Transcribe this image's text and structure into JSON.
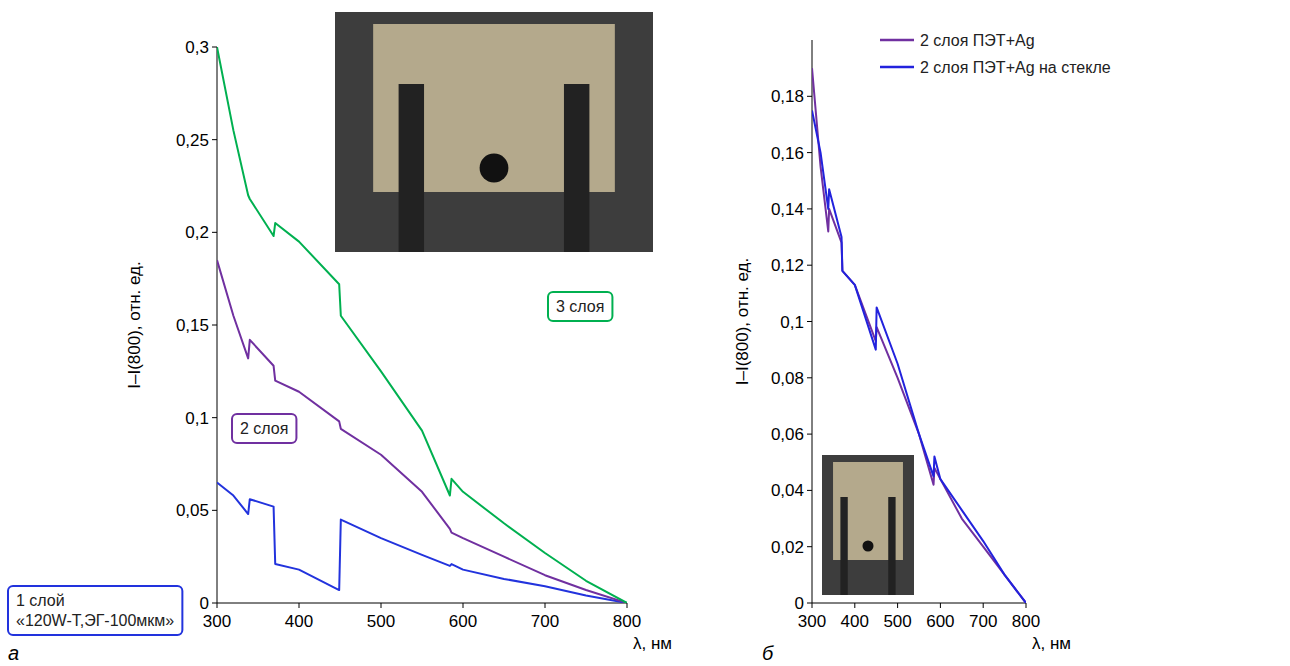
{
  "chart_data": [
    {
      "type": "line",
      "title": "а",
      "x_label": "λ, нм",
      "y_label": "I–I(800), отн. ед.",
      "x": [
        300,
        320,
        338,
        340,
        369,
        371,
        400,
        449,
        451,
        500,
        550,
        584,
        586,
        600,
        650,
        700,
        750,
        800
      ],
      "series": [
        {
          "name": "1 слой «120W-Т,ЭГ-100мкм»",
          "color": "#2233dd",
          "values": [
            0.065,
            0.058,
            0.048,
            0.056,
            0.052,
            0.021,
            0.018,
            0.007,
            0.045,
            0.035,
            0.026,
            0.02,
            0.021,
            0.018,
            0.013,
            0.009,
            0.004,
            0
          ]
        },
        {
          "name": "2 слоя",
          "color": "#7030a0",
          "values": [
            0.185,
            0.155,
            0.132,
            0.142,
            0.128,
            0.12,
            0.114,
            0.098,
            0.094,
            0.08,
            0.06,
            0.04,
            0.038,
            0.035,
            0.025,
            0.015,
            0.007,
            0
          ]
        },
        {
          "name": "3 слоя",
          "color": "#00b050",
          "values": [
            0.3,
            0.255,
            0.22,
            0.218,
            0.198,
            0.205,
            0.195,
            0.172,
            0.155,
            0.125,
            0.093,
            0.058,
            0.067,
            0.06,
            0.043,
            0.027,
            0.012,
            0
          ]
        }
      ],
      "xlim": [
        300,
        800
      ],
      "ylim": [
        0,
        0.3
      ],
      "xticks": [
        300,
        400,
        500,
        600,
        700,
        800
      ],
      "yticks": [
        0,
        {
          "value": 0.05,
          "label": "0,05"
        },
        {
          "value": 0.1,
          "label": "0,1"
        },
        {
          "value": 0.15,
          "label": "0,15"
        },
        {
          "value": 0.2,
          "label": "0,2"
        },
        {
          "value": 0.25,
          "label": "0,25"
        },
        {
          "value": 0.3,
          "label": "0,3"
        }
      ],
      "grid": false
    },
    {
      "type": "line",
      "title": "б",
      "x_label": "λ, нм",
      "y_label": "I–I(800), отн. ед.",
      "x": [
        300,
        320,
        338,
        340,
        369,
        371,
        400,
        449,
        451,
        500,
        550,
        584,
        586,
        600,
        650,
        700,
        750,
        800
      ],
      "series": [
        {
          "name": "2 слоя ПЭТ+Ag",
          "color": "#7030a0",
          "values": [
            0.19,
            0.155,
            0.132,
            0.14,
            0.128,
            0.118,
            0.113,
            0.093,
            0.098,
            0.08,
            0.06,
            0.042,
            0.048,
            0.044,
            0.03,
            0.02,
            0.01,
            0
          ]
        },
        {
          "name": "2 слоя ПЭТ+Ag на стекле",
          "color": "#2222dd",
          "values": [
            0.175,
            0.16,
            0.14,
            0.147,
            0.13,
            0.118,
            0.113,
            0.09,
            0.105,
            0.085,
            0.06,
            0.045,
            0.052,
            0.044,
            0.033,
            0.022,
            0.01,
            0
          ]
        }
      ],
      "xlim": [
        300,
        800
      ],
      "ylim": [
        0,
        0.2
      ],
      "xticks": [
        300,
        400,
        500,
        600,
        700,
        800
      ],
      "yticks": [
        0,
        {
          "value": 0.02,
          "label": "0,02"
        },
        {
          "value": 0.04,
          "label": "0,04"
        },
        {
          "value": 0.06,
          "label": "0,06"
        },
        {
          "value": 0.08,
          "label": "0,08"
        },
        {
          "value": 0.1,
          "label": "0,1"
        },
        {
          "value": 0.12,
          "label": "0,12"
        },
        {
          "value": 0.14,
          "label": "0,14"
        },
        {
          "value": 0.16,
          "label": "0,16"
        },
        {
          "value": 0.18,
          "label": "0,18"
        }
      ],
      "grid": false,
      "legend": "upper right"
    }
  ]
}
